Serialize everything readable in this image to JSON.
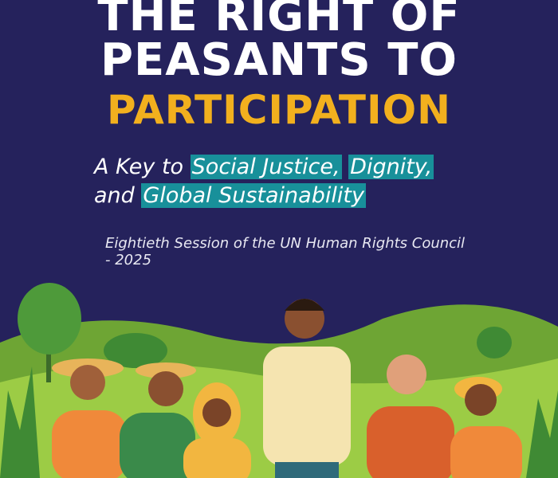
{
  "title": {
    "line1": "THE RIGHT OF",
    "line2": "PEASANTS TO",
    "line3": "PARTICIPATION"
  },
  "subtitle": {
    "prefix1": "A Key to ",
    "highlight1": "Social Justice,",
    "highlight2": "Dignity,",
    "prefix2": "and ",
    "highlight3": "Global Sustainability"
  },
  "session": "Eightieth Session of the UN Human Rights Council - 2025",
  "colors": {
    "background": "#25225c",
    "accent_yellow": "#f2b01e",
    "highlight_teal": "#18909a",
    "hills": "#7fb83a"
  }
}
